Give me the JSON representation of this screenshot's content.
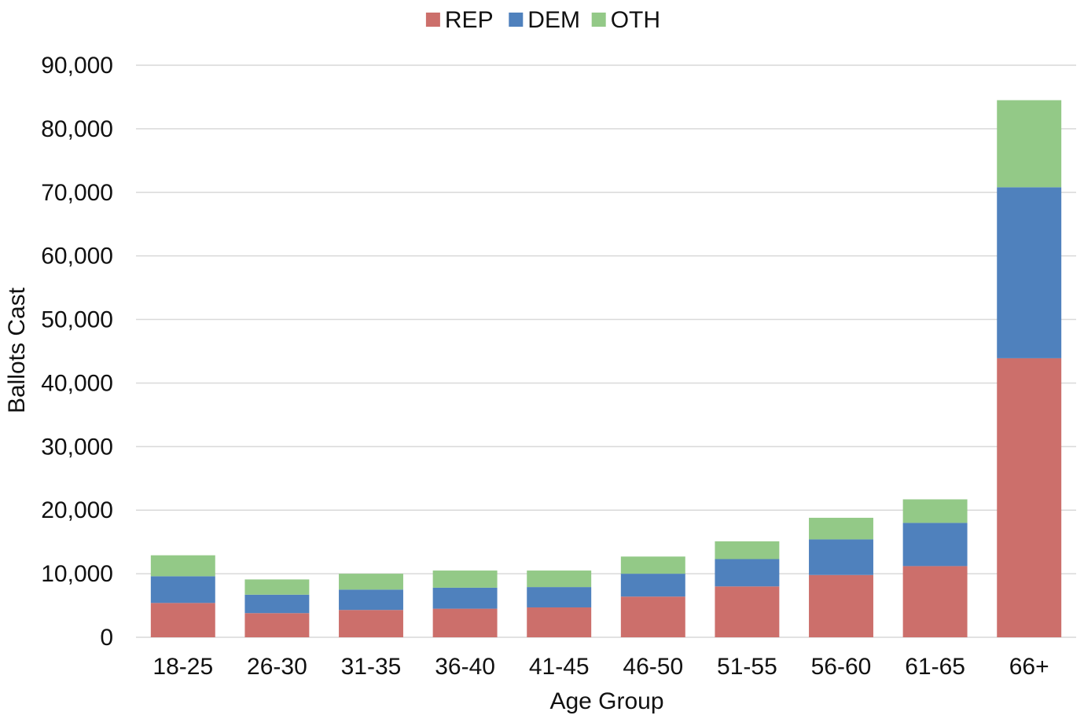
{
  "chart_data": {
    "type": "bar",
    "stacked": true,
    "categories": [
      "18-25",
      "26-30",
      "31-35",
      "36-40",
      "41-45",
      "46-50",
      "51-55",
      "56-60",
      "61-65",
      "66+"
    ],
    "series": [
      {
        "name": "REP",
        "color": "#cc6f6b",
        "values": [
          5400,
          3800,
          4300,
          4500,
          4700,
          6400,
          8000,
          9800,
          11200,
          43900
        ]
      },
      {
        "name": "DEM",
        "color": "#4f81bd",
        "values": [
          4200,
          2900,
          3200,
          3300,
          3200,
          3600,
          4300,
          5600,
          6800,
          26900
        ]
      },
      {
        "name": "OTH",
        "color": "#93c987",
        "values": [
          3300,
          2400,
          2500,
          2700,
          2600,
          2700,
          2800,
          3400,
          3700,
          13700
        ]
      }
    ],
    "title": "",
    "xlabel": "Age Group",
    "ylabel": "Ballots Cast",
    "ylim": [
      0,
      90000
    ],
    "yticks": [
      0,
      10000,
      20000,
      30000,
      40000,
      50000,
      60000,
      70000,
      80000,
      90000
    ],
    "ytick_labels": [
      "0",
      "10,000",
      "20,000",
      "30,000",
      "40,000",
      "50,000",
      "60,000",
      "70,000",
      "80,000",
      "90,000"
    ],
    "grid": true,
    "gridline_color": "#d9d9d9",
    "legend_position": "top-center"
  }
}
